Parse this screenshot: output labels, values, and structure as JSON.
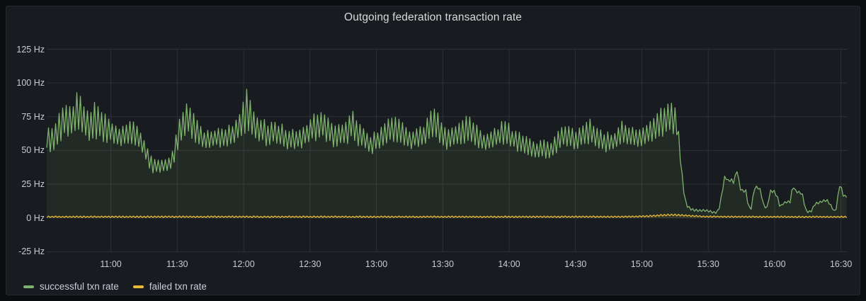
{
  "chart_data": {
    "type": "line",
    "title": "Outgoing federation transaction rate",
    "grid": true,
    "legend_position": "bottom-left",
    "x_axis": {
      "note": "time of day; tick_minutes are minutes relative to 11:00",
      "tick_labels": [
        "11:00",
        "11:30",
        "12:00",
        "12:30",
        "13:00",
        "13:30",
        "14:00",
        "14:30",
        "15:00",
        "15:30",
        "16:00",
        "16:30"
      ],
      "tick_minutes": [
        0,
        30,
        60,
        90,
        120,
        150,
        180,
        210,
        240,
        270,
        300,
        330
      ],
      "range_minutes": [
        -29,
        333
      ]
    },
    "y_axis": {
      "unit": "Hz",
      "tick_labels": [
        "-25 Hz",
        "0 Hz",
        "25 Hz",
        "50 Hz",
        "75 Hz",
        "100 Hz",
        "125 Hz"
      ],
      "tick_values": [
        -25,
        0,
        25,
        50,
        75,
        100,
        125
      ],
      "range": [
        -25,
        125
      ]
    },
    "series": [
      {
        "name": "successful txn rate",
        "color": "#7EB26D",
        "fill_opacity": 0.1,
        "envelope_format": "[minutes_rel_11:00, low_hz, high_hz] of noisy oscillation band",
        "envelope": [
          [
            -29,
            52,
            73
          ],
          [
            -27,
            48,
            68
          ],
          [
            -25,
            50,
            72
          ],
          [
            -23,
            55,
            80
          ],
          [
            -21,
            58,
            88
          ],
          [
            -19,
            60,
            90
          ],
          [
            -17,
            58,
            85
          ],
          [
            -15,
            62,
            99
          ],
          [
            -13,
            60,
            88
          ],
          [
            -11,
            58,
            82
          ],
          [
            -9,
            56,
            80
          ],
          [
            -7,
            58,
            87
          ],
          [
            -5,
            56,
            84
          ],
          [
            -3,
            55,
            80
          ],
          [
            -1,
            55,
            76
          ],
          [
            1,
            54,
            73
          ],
          [
            3,
            53,
            70
          ],
          [
            5,
            52,
            68
          ],
          [
            7,
            54,
            72
          ],
          [
            9,
            55,
            74
          ],
          [
            11,
            53,
            70
          ],
          [
            13,
            50,
            66
          ],
          [
            15,
            46,
            60
          ],
          [
            17,
            37,
            50
          ],
          [
            19,
            33,
            44
          ],
          [
            21,
            33,
            43
          ],
          [
            23,
            34,
            43
          ],
          [
            25,
            34,
            44
          ],
          [
            27,
            36,
            46
          ],
          [
            29,
            42,
            58
          ],
          [
            31,
            55,
            76
          ],
          [
            33,
            60,
            83
          ],
          [
            35,
            61,
            86
          ],
          [
            37,
            58,
            80
          ],
          [
            39,
            54,
            74
          ],
          [
            41,
            52,
            68
          ],
          [
            43,
            50,
            65
          ],
          [
            45,
            51,
            66
          ],
          [
            47,
            52,
            67
          ],
          [
            49,
            52,
            67
          ],
          [
            51,
            53,
            68
          ],
          [
            53,
            53,
            69
          ],
          [
            55,
            54,
            71
          ],
          [
            57,
            56,
            76
          ],
          [
            59,
            60,
            85
          ],
          [
            61,
            63,
            97
          ],
          [
            63,
            61,
            90
          ],
          [
            65,
            58,
            82
          ],
          [
            67,
            56,
            77
          ],
          [
            69,
            54,
            74
          ],
          [
            71,
            53,
            71
          ],
          [
            73,
            54,
            72
          ],
          [
            75,
            54,
            72
          ],
          [
            77,
            52,
            70
          ],
          [
            79,
            51,
            68
          ],
          [
            81,
            50,
            67
          ],
          [
            83,
            50,
            66
          ],
          [
            85,
            51,
            68
          ],
          [
            87,
            52,
            70
          ],
          [
            89,
            54,
            73
          ],
          [
            91,
            56,
            76
          ],
          [
            93,
            57,
            79
          ],
          [
            95,
            58,
            83
          ],
          [
            97,
            56,
            78
          ],
          [
            99,
            54,
            74
          ],
          [
            101,
            52,
            70
          ],
          [
            103,
            53,
            71
          ],
          [
            105,
            54,
            72
          ],
          [
            107,
            55,
            75
          ],
          [
            109,
            57,
            86
          ],
          [
            111,
            54,
            75
          ],
          [
            113,
            51,
            70
          ],
          [
            115,
            49,
            66
          ],
          [
            117,
            47,
            62
          ],
          [
            119,
            48,
            64
          ],
          [
            121,
            50,
            66
          ],
          [
            123,
            52,
            69
          ],
          [
            125,
            54,
            73
          ],
          [
            127,
            55,
            77
          ],
          [
            129,
            56,
            79
          ],
          [
            131,
            54,
            73
          ],
          [
            133,
            52,
            69
          ],
          [
            135,
            50,
            66
          ],
          [
            137,
            51,
            67
          ],
          [
            139,
            52,
            68
          ],
          [
            141,
            52,
            69
          ],
          [
            143,
            54,
            75
          ],
          [
            145,
            56,
            81
          ],
          [
            147,
            57,
            84
          ],
          [
            149,
            54,
            75
          ],
          [
            151,
            51,
            69
          ],
          [
            153,
            50,
            67
          ],
          [
            155,
            52,
            69
          ],
          [
            157,
            53,
            71
          ],
          [
            159,
            54,
            75
          ],
          [
            161,
            55,
            78
          ],
          [
            163,
            54,
            76
          ],
          [
            165,
            52,
            70
          ],
          [
            167,
            50,
            66
          ],
          [
            169,
            49,
            64
          ],
          [
            171,
            50,
            64
          ],
          [
            173,
            51,
            66
          ],
          [
            175,
            52,
            69
          ],
          [
            177,
            54,
            74
          ],
          [
            179,
            53,
            72
          ],
          [
            181,
            51,
            68
          ],
          [
            183,
            50,
            66
          ],
          [
            185,
            48,
            64
          ],
          [
            187,
            47,
            62
          ],
          [
            189,
            45,
            60
          ],
          [
            191,
            44,
            58
          ],
          [
            193,
            44,
            57
          ],
          [
            195,
            45,
            59
          ],
          [
            197,
            43,
            57
          ],
          [
            199,
            44,
            58
          ],
          [
            201,
            47,
            62
          ],
          [
            203,
            50,
            68
          ],
          [
            205,
            52,
            71
          ],
          [
            207,
            51,
            69
          ],
          [
            209,
            50,
            66
          ],
          [
            211,
            51,
            67
          ],
          [
            213,
            52,
            69
          ],
          [
            215,
            54,
            74
          ],
          [
            217,
            54,
            75
          ],
          [
            219,
            52,
            70
          ],
          [
            221,
            50,
            67
          ],
          [
            223,
            49,
            65
          ],
          [
            225,
            48,
            64
          ],
          [
            227,
            49,
            65
          ],
          [
            229,
            51,
            67
          ],
          [
            231,
            54,
            73
          ],
          [
            233,
            53,
            71
          ],
          [
            235,
            52,
            69
          ],
          [
            237,
            52,
            68
          ],
          [
            239,
            52,
            69
          ],
          [
            241,
            53,
            71
          ],
          [
            243,
            54,
            73
          ],
          [
            245,
            56,
            77
          ],
          [
            247,
            58,
            80
          ],
          [
            249,
            59,
            83
          ],
          [
            251,
            61,
            86
          ],
          [
            253,
            62,
            88
          ],
          [
            255,
            60,
            84
          ],
          [
            256.5,
            58,
            68
          ],
          [
            257.5,
            40,
            46
          ],
          [
            258.5,
            24,
            28
          ],
          [
            259.5,
            12,
            15
          ],
          [
            261,
            6,
            9
          ],
          [
            263,
            5,
            7
          ],
          [
            265,
            4.5,
            6.5
          ],
          [
            267,
            4.5,
            6.5
          ],
          [
            269,
            4.5,
            6.5
          ],
          [
            271,
            4,
            6
          ],
          [
            272.5,
            3,
            5
          ],
          [
            274,
            3,
            5
          ],
          [
            275.5,
            8,
            12
          ],
          [
            277,
            26,
            30
          ],
          [
            278,
            29,
            33
          ],
          [
            279,
            26,
            29
          ],
          [
            280,
            27,
            31
          ],
          [
            281.5,
            25,
            28
          ],
          [
            283,
            34,
            37
          ],
          [
            284.3,
            21,
            24
          ],
          [
            285.5,
            19,
            21
          ],
          [
            287,
            19,
            21
          ],
          [
            288.2,
            7,
            9
          ],
          [
            289.5,
            6,
            8
          ],
          [
            290.8,
            21,
            24
          ],
          [
            292,
            22,
            24
          ],
          [
            293.5,
            20,
            22
          ],
          [
            295,
            9,
            11
          ],
          [
            296.5,
            6,
            8
          ],
          [
            298,
            18,
            21
          ],
          [
            299.5,
            19,
            21
          ],
          [
            301,
            15,
            19
          ],
          [
            302.5,
            7,
            9
          ],
          [
            304,
            10,
            12
          ],
          [
            305.5,
            11,
            13
          ],
          [
            307,
            11,
            13
          ],
          [
            308.3,
            23,
            26
          ],
          [
            309.5,
            19,
            21
          ],
          [
            311,
            18,
            20
          ],
          [
            312.5,
            17,
            19
          ],
          [
            314,
            5,
            7
          ],
          [
            315.5,
            3,
            5
          ],
          [
            317,
            5,
            7
          ],
          [
            318,
            9,
            11
          ],
          [
            319.5,
            10,
            12
          ],
          [
            321,
            11,
            13
          ],
          [
            322.5,
            12,
            14
          ],
          [
            324,
            12,
            14
          ],
          [
            325.5,
            8,
            10
          ],
          [
            327,
            4,
            6
          ],
          [
            328.2,
            7,
            9
          ],
          [
            329,
            22,
            25
          ],
          [
            329.8,
            24,
            26
          ],
          [
            330.8,
            16,
            18
          ],
          [
            332,
            15,
            17
          ],
          [
            332.8,
            15,
            17
          ]
        ]
      },
      {
        "name": "failed txn rate",
        "color": "#EAB839",
        "fill_opacity": 0.1,
        "envelope_format": "[minutes_rel_11:00, low_hz, high_hz]",
        "envelope": [
          [
            -29,
            0.3,
            1.5
          ],
          [
            0,
            0.3,
            1.5
          ],
          [
            60,
            0.3,
            1.5
          ],
          [
            120,
            0.3,
            1.5
          ],
          [
            180,
            0.3,
            1.5
          ],
          [
            235,
            0.3,
            1.6
          ],
          [
            243,
            0.7,
            2.0
          ],
          [
            248,
            1.2,
            2.7
          ],
          [
            252,
            1.5,
            3.0
          ],
          [
            256,
            1.5,
            3.0
          ],
          [
            260,
            1.2,
            2.6
          ],
          [
            264,
            0.8,
            2.0
          ],
          [
            268,
            0.5,
            1.7
          ],
          [
            275,
            0.4,
            1.5
          ],
          [
            300,
            0.3,
            1.4
          ],
          [
            332.8,
            0.3,
            1.4
          ]
        ]
      }
    ]
  },
  "colors": {
    "page_background": "#0c0d0f",
    "panel_background": "#181b1f",
    "panel_border": "#24272b",
    "grid": "#2c3235",
    "axis_text": "#c8ccd1",
    "title_text": "#d8d9da",
    "legend_text": "#ccccdc",
    "series_green": "#7EB26D",
    "series_yellow": "#EAB839"
  }
}
